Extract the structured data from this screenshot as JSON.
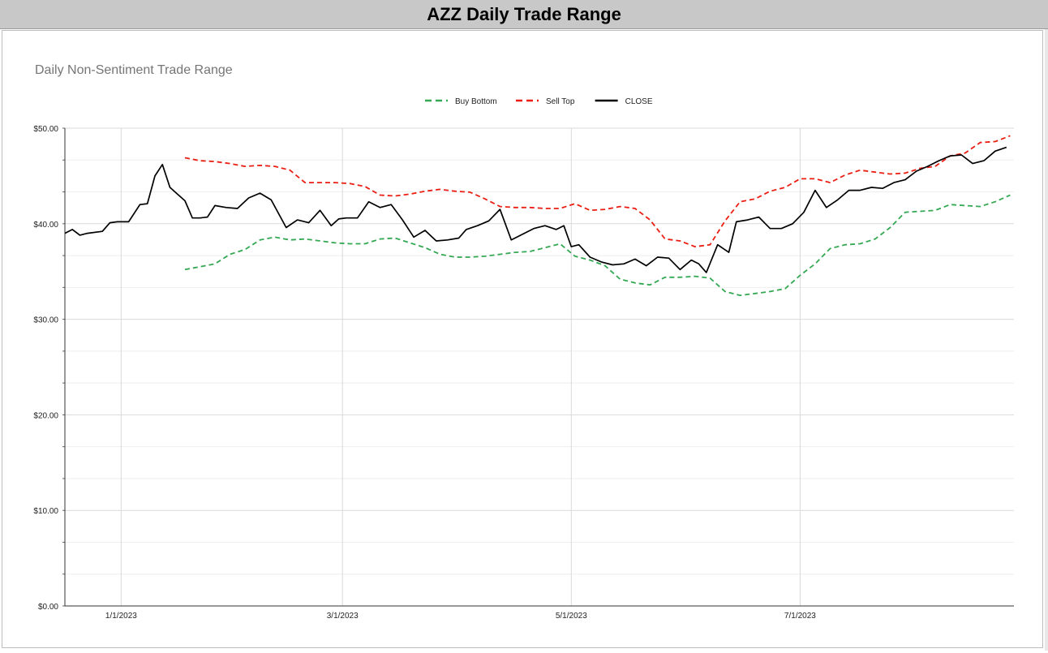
{
  "header": {
    "title": "AZZ Daily Trade Range"
  },
  "chart_data": {
    "type": "line",
    "title": "Daily Non-Sentiment Trade Range",
    "xlabel": "",
    "ylabel": "",
    "ylim": [
      0,
      50
    ],
    "yticks": [
      0,
      10,
      20,
      30,
      40,
      50
    ],
    "ytick_labels": [
      "$0.00",
      "$10.00",
      "$20.00",
      "$30.00",
      "$40.00",
      "$50.00"
    ],
    "xlim": [
      "2022-12-17",
      "2023-08-27"
    ],
    "xticks": [
      "2023-01-01",
      "2023-03-01",
      "2023-05-01",
      "2023-07-01"
    ],
    "xtick_labels": [
      "1/1/2023",
      "3/1/2023",
      "5/1/2023",
      "7/1/2023"
    ],
    "grid": true,
    "legend_position": "top-center",
    "series": [
      {
        "name": "Buy Bottom",
        "color": "#34a853",
        "dash": true,
        "x": [
          "2023-01-18",
          "2023-01-22",
          "2023-01-26",
          "2023-01-30",
          "2023-02-03",
          "2023-02-07",
          "2023-02-11",
          "2023-02-15",
          "2023-02-19",
          "2023-02-23",
          "2023-02-27",
          "2023-03-03",
          "2023-03-07",
          "2023-03-11",
          "2023-03-15",
          "2023-03-19",
          "2023-03-23",
          "2023-03-27",
          "2023-03-31",
          "2023-04-04",
          "2023-04-08",
          "2023-04-12",
          "2023-04-16",
          "2023-04-20",
          "2023-04-24",
          "2023-04-28",
          "2023-05-02",
          "2023-05-06",
          "2023-05-10",
          "2023-05-14",
          "2023-05-18",
          "2023-05-22",
          "2023-05-26",
          "2023-05-30",
          "2023-06-03",
          "2023-06-07",
          "2023-06-11",
          "2023-06-15",
          "2023-06-19",
          "2023-06-23",
          "2023-06-27",
          "2023-07-01",
          "2023-07-05",
          "2023-07-09",
          "2023-07-13",
          "2023-07-17",
          "2023-07-21",
          "2023-07-25",
          "2023-07-29",
          "2023-08-02",
          "2023-08-06",
          "2023-08-10",
          "2023-08-14",
          "2023-08-18",
          "2023-08-22",
          "2023-08-26"
        ],
        "values": [
          35.2,
          35.5,
          35.8,
          36.8,
          37.3,
          38.3,
          38.6,
          38.3,
          38.4,
          38.2,
          38.0,
          37.9,
          37.9,
          38.4,
          38.5,
          38.0,
          37.5,
          36.8,
          36.5,
          36.5,
          36.6,
          36.8,
          37.0,
          37.1,
          37.5,
          37.9,
          36.6,
          36.2,
          35.6,
          34.2,
          33.8,
          33.6,
          34.4,
          34.4,
          34.5,
          34.3,
          32.9,
          32.5,
          32.7,
          32.9,
          33.2,
          34.6,
          35.8,
          37.4,
          37.8,
          37.9,
          38.4,
          39.6,
          41.2,
          41.3,
          41.4,
          42.0,
          41.9,
          41.8,
          42.3,
          43.0
        ]
      },
      {
        "name": "Sell Top",
        "color": "#ea1e12",
        "dash": true,
        "x": [
          "2023-01-18",
          "2023-01-22",
          "2023-01-26",
          "2023-01-30",
          "2023-02-03",
          "2023-02-07",
          "2023-02-11",
          "2023-02-15",
          "2023-02-19",
          "2023-02-23",
          "2023-02-27",
          "2023-03-03",
          "2023-03-07",
          "2023-03-11",
          "2023-03-15",
          "2023-03-19",
          "2023-03-23",
          "2023-03-27",
          "2023-03-31",
          "2023-04-04",
          "2023-04-08",
          "2023-04-12",
          "2023-04-16",
          "2023-04-20",
          "2023-04-24",
          "2023-04-28",
          "2023-05-02",
          "2023-05-06",
          "2023-05-10",
          "2023-05-14",
          "2023-05-18",
          "2023-05-22",
          "2023-05-26",
          "2023-05-30",
          "2023-06-03",
          "2023-06-07",
          "2023-06-11",
          "2023-06-15",
          "2023-06-19",
          "2023-06-23",
          "2023-06-27",
          "2023-07-01",
          "2023-07-05",
          "2023-07-09",
          "2023-07-13",
          "2023-07-17",
          "2023-07-21",
          "2023-07-25",
          "2023-07-29",
          "2023-08-02",
          "2023-08-06",
          "2023-08-10",
          "2023-08-14",
          "2023-08-18",
          "2023-08-22",
          "2023-08-26"
        ],
        "values": [
          46.9,
          46.6,
          46.5,
          46.3,
          46.0,
          46.1,
          46.0,
          45.6,
          44.3,
          44.3,
          44.3,
          44.2,
          43.9,
          43.0,
          42.9,
          43.1,
          43.4,
          43.6,
          43.4,
          43.3,
          42.6,
          41.8,
          41.7,
          41.7,
          41.6,
          41.6,
          42.1,
          41.4,
          41.5,
          41.8,
          41.6,
          40.4,
          38.4,
          38.2,
          37.6,
          37.8,
          40.3,
          42.3,
          42.6,
          43.4,
          43.8,
          44.7,
          44.7,
          44.3,
          45.1,
          45.6,
          45.4,
          45.2,
          45.3,
          45.8,
          46.0,
          47.1,
          47.4,
          48.5,
          48.6,
          49.2
        ]
      },
      {
        "name": "CLOSE",
        "color": "#000000",
        "dash": false,
        "x": [
          "2022-12-17",
          "2022-12-19",
          "2022-12-21",
          "2022-12-23",
          "2022-12-27",
          "2022-12-29",
          "2022-12-31",
          "2023-01-03",
          "2023-01-06",
          "2023-01-08",
          "2023-01-10",
          "2023-01-12",
          "2023-01-14",
          "2023-01-16",
          "2023-01-18",
          "2023-01-20",
          "2023-01-22",
          "2023-01-24",
          "2023-01-26",
          "2023-01-29",
          "2023-02-01",
          "2023-02-04",
          "2023-02-07",
          "2023-02-10",
          "2023-02-14",
          "2023-02-17",
          "2023-02-20",
          "2023-02-23",
          "2023-02-26",
          "2023-02-28",
          "2023-03-02",
          "2023-03-05",
          "2023-03-08",
          "2023-03-11",
          "2023-03-14",
          "2023-03-17",
          "2023-03-20",
          "2023-03-23",
          "2023-03-26",
          "2023-03-29",
          "2023-04-01",
          "2023-04-03",
          "2023-04-06",
          "2023-04-09",
          "2023-04-12",
          "2023-04-15",
          "2023-04-18",
          "2023-04-21",
          "2023-04-24",
          "2023-04-27",
          "2023-04-29",
          "2023-05-01",
          "2023-05-03",
          "2023-05-06",
          "2023-05-09",
          "2023-05-12",
          "2023-05-15",
          "2023-05-18",
          "2023-05-21",
          "2023-05-24",
          "2023-05-27",
          "2023-05-30",
          "2023-06-02",
          "2023-06-04",
          "2023-06-06",
          "2023-06-09",
          "2023-06-12",
          "2023-06-14",
          "2023-06-17",
          "2023-06-20",
          "2023-06-23",
          "2023-06-26",
          "2023-06-29",
          "2023-07-02",
          "2023-07-05",
          "2023-07-08",
          "2023-07-11",
          "2023-07-14",
          "2023-07-17",
          "2023-07-20",
          "2023-07-23",
          "2023-07-26",
          "2023-07-29",
          "2023-08-01",
          "2023-08-04",
          "2023-08-07",
          "2023-08-10",
          "2023-08-13",
          "2023-08-16",
          "2023-08-19",
          "2023-08-22",
          "2023-08-25"
        ],
        "values": [
          39.0,
          39.4,
          38.8,
          39.0,
          39.2,
          40.1,
          40.2,
          40.2,
          42.0,
          42.1,
          45.0,
          46.2,
          43.8,
          43.1,
          42.4,
          40.6,
          40.6,
          40.7,
          41.9,
          41.7,
          41.6,
          42.7,
          43.2,
          42.5,
          39.6,
          40.4,
          40.1,
          41.4,
          39.8,
          40.5,
          40.6,
          40.6,
          42.3,
          41.7,
          42.0,
          40.4,
          38.6,
          39.3,
          38.2,
          38.3,
          38.5,
          39.4,
          39.8,
          40.3,
          41.5,
          38.3,
          38.9,
          39.5,
          39.8,
          39.4,
          39.8,
          37.6,
          37.8,
          36.5,
          36.0,
          35.7,
          35.8,
          36.3,
          35.6,
          36.5,
          36.4,
          35.2,
          36.2,
          35.8,
          34.9,
          37.8,
          37.0,
          40.2,
          40.4,
          40.7,
          39.5,
          39.5,
          40.0,
          41.2,
          43.5,
          41.7,
          42.5,
          43.5,
          43.5,
          43.8,
          43.7,
          44.3,
          44.6,
          45.5,
          46.0,
          46.6,
          47.1,
          47.2,
          46.3,
          46.6,
          47.6,
          48.0
        ]
      }
    ]
  }
}
